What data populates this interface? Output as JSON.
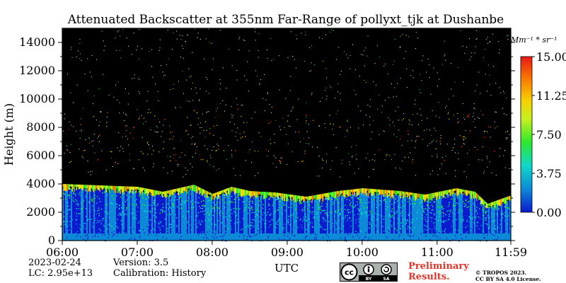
{
  "chart_data": {
    "type": "heatmap",
    "title": "Attenuated Backscatter at 355nm Far-Range of pollyxt_tjk at Dushanbe",
    "xlabel": "UTC",
    "ylabel": "Height (m)",
    "x_range": [
      "06:00",
      "11:59"
    ],
    "x_ticks": [
      "06:00",
      "07:00",
      "08:00",
      "09:00",
      "10:00",
      "11:00",
      "11:59"
    ],
    "y_range": [
      0,
      15000
    ],
    "y_ticks": [
      0,
      2000,
      4000,
      6000,
      8000,
      10000,
      12000,
      14000
    ],
    "colorbar": {
      "unit": "Mm⁻¹ * sr⁻¹",
      "range": [
        0,
        15
      ],
      "ticks": [
        "0.00",
        "3.75",
        "7.50",
        "11.25",
        "15.00"
      ],
      "colors": [
        "#0a1acc",
        "#0c8ad8",
        "#10d8c8",
        "#2ee82e",
        "#c8f020",
        "#f8d000",
        "#f87800",
        "#e81818"
      ]
    },
    "background_color": "#000000",
    "layer_top_profile": [
      [
        "06:00",
        4000
      ],
      [
        "06:30",
        3900
      ],
      [
        "07:00",
        3800
      ],
      [
        "07:20",
        3450
      ],
      [
        "07:45",
        3950
      ],
      [
        "08:00",
        3300
      ],
      [
        "08:15",
        3800
      ],
      [
        "08:30",
        3500
      ],
      [
        "08:50",
        3400
      ],
      [
        "09:15",
        3100
      ],
      [
        "09:40",
        3500
      ],
      [
        "10:00",
        3700
      ],
      [
        "10:30",
        3500
      ],
      [
        "10:50",
        3250
      ],
      [
        "11:15",
        3700
      ],
      [
        "11:30",
        3450
      ],
      [
        "11:40",
        2600
      ],
      [
        "11:59",
        3200
      ]
    ]
  },
  "info": {
    "date": "2023-02-24",
    "lc": "LC: 2.95e+13",
    "version": "Version: 3.5",
    "calibration": "Calibration: History"
  },
  "prelim_line1": "Preliminary",
  "prelim_line2": "Results.",
  "copyright_line1": "© TROPOS 2023.",
  "copyright_line2": "CC BY SA 4.0 License.",
  "badge_text1": "BY",
  "badge_text2": "SA"
}
